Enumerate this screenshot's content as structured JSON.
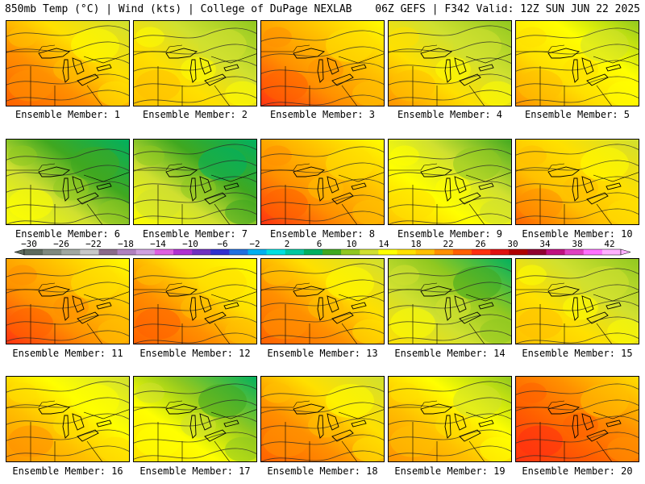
{
  "header": {
    "left": "850mb Temp (°C) | Wind (kts) | College of DuPage NEXLAB",
    "right": "06Z GEFS | F342 Valid: 12Z SUN JUN 22 2025"
  },
  "member_label_prefix": "Ensemble Member: ",
  "members": [
    {
      "label": "Ensemble Member: 1",
      "warmth": 0.62
    },
    {
      "label": "Ensemble Member: 2",
      "warmth": 0.45
    },
    {
      "label": "Ensemble Member: 3",
      "warmth": 0.72
    },
    {
      "label": "Ensemble Member: 4",
      "warmth": 0.48
    },
    {
      "label": "Ensemble Member: 5",
      "warmth": 0.5
    },
    {
      "label": "Ensemble Member: 6",
      "warmth": 0.25
    },
    {
      "label": "Ensemble Member: 7",
      "warmth": 0.22
    },
    {
      "label": "Ensemble Member: 8",
      "warmth": 0.68
    },
    {
      "label": "Ensemble Member: 9",
      "warmth": 0.4
    },
    {
      "label": "Ensemble Member: 10",
      "warmth": 0.6
    },
    {
      "label": "Ensemble Member: 11",
      "warmth": 0.72
    },
    {
      "label": "Ensemble Member: 12",
      "warmth": 0.66
    },
    {
      "label": "Ensemble Member: 13",
      "warmth": 0.62
    },
    {
      "label": "Ensemble Member: 14",
      "warmth": 0.3
    },
    {
      "label": "Ensemble Member: 15",
      "warmth": 0.45
    },
    {
      "label": "Ensemble Member: 16",
      "warmth": 0.55
    },
    {
      "label": "Ensemble Member: 17",
      "warmth": 0.32
    },
    {
      "label": "Ensemble Member: 18",
      "warmth": 0.62
    },
    {
      "label": "Ensemble Member: 19",
      "warmth": 0.52
    },
    {
      "label": "Ensemble Member: 20",
      "warmth": 0.8
    }
  ],
  "colorbar": {
    "ticks": [
      "−30",
      "−26",
      "−22",
      "−18",
      "−14",
      "−10",
      "−6",
      "−2",
      "2",
      "6",
      "10",
      "14",
      "18",
      "22",
      "26",
      "30",
      "34",
      "38",
      "42"
    ],
    "colors": [
      "#5c6a5c",
      "#7f8a7f",
      "#a0a8a0",
      "#c8c8c8",
      "#8a6a8a",
      "#b080c0",
      "#d0a0e0",
      "#e060e0",
      "#b030d0",
      "#7030c0",
      "#3030d0",
      "#2070e0",
      "#00b0f0",
      "#00e0e0",
      "#00c8a0",
      "#00b060",
      "#40a820",
      "#90c820",
      "#d0e030",
      "#ffff00",
      "#ffe000",
      "#ffc000",
      "#ff9000",
      "#ff6000",
      "#ff3010",
      "#e01010",
      "#b00000",
      "#900030",
      "#c01080",
      "#e040c0",
      "#ff70ff",
      "#ffb0ff"
    ]
  }
}
